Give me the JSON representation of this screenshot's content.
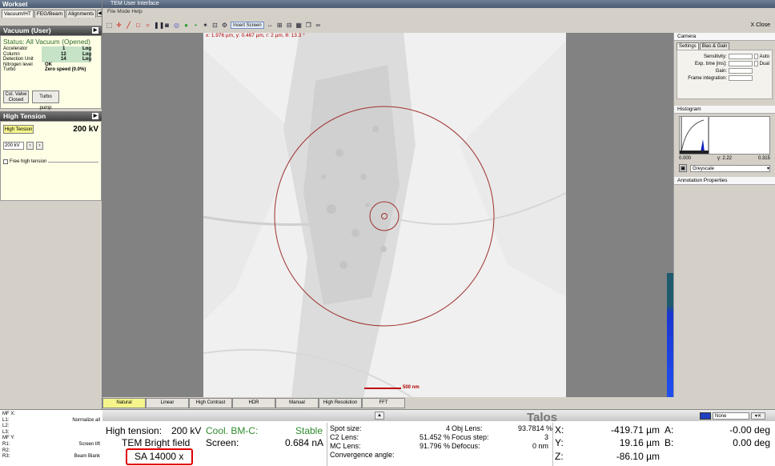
{
  "left": {
    "title": "Workset",
    "tabs": [
      "Vacuum/HT",
      "FEG/Beam",
      "Alignments"
    ],
    "vacuum": {
      "header": "Vacuum (User)",
      "status": "Status: All Vacuum (Opened)",
      "rows": [
        {
          "label": "Accelerator",
          "value": "1",
          "unit": "Log"
        },
        {
          "label": "Column",
          "value": "12",
          "unit": "Log"
        },
        {
          "label": "Detection Unit",
          "value": "14",
          "unit": "Log"
        },
        {
          "label": "Nitrogen level",
          "value": "OK",
          "unit": ""
        },
        {
          "label": "Turbo",
          "value": "Zero speed (0.0%)",
          "unit": ""
        }
      ],
      "col_valve": "Col. Valve Closed",
      "turbo_pump": "Turbo pump"
    },
    "ht": {
      "header": "High Tension",
      "button": "High Tension",
      "value": "200 kV",
      "select": "200 kV",
      "free_ht": "Free high tension"
    },
    "bottom": [
      {
        "label": "MF X:",
        "action": "Normalize all"
      },
      {
        "label": "L1:",
        "action": ""
      },
      {
        "label": "L2:",
        "action": ""
      },
      {
        "label": "L3:",
        "action": ""
      },
      {
        "label": "MF Y:",
        "action": ""
      },
      {
        "label": "R1:",
        "action": "Screen lift"
      },
      {
        "label": "R2:",
        "action": ""
      },
      {
        "label": "R3:",
        "action": "Beam Blank"
      }
    ]
  },
  "app": {
    "title": "TEM User Interface",
    "menu": "File  Mode  Help",
    "insert_screen": "Insert Screen",
    "close": "X Close"
  },
  "image": {
    "coord_readout": "x: 1.976 µm, y: 0.467 µm, r: 2 µm, θ: 13.3 °",
    "scale_label": "500 nm"
  },
  "modes": [
    "Natural",
    "Linear",
    "High Contrast",
    "HDR",
    "Manual",
    "High Resolution",
    "FFT"
  ],
  "right": {
    "camera": "Camera",
    "tabs": [
      "Settings",
      "Bias & Gain"
    ],
    "fields": [
      "Sensitivity:",
      "Exp. time [ms]:",
      "Gain:",
      "Frame integration:"
    ],
    "auto": "Auto",
    "dual": "Dual",
    "histogram": "Histogram",
    "hist_min": "0.000",
    "hist_gamma": "γ: 2.22",
    "hist_max": "0.315",
    "colormap": "Greyscale",
    "annotation": "Annotation Properties"
  },
  "status": {
    "brand": "Talos",
    "none_select": "None",
    "ht_label": "High tension:",
    "ht_value": "200 kV",
    "cool_label": "Cool. BM-C:",
    "cool_value": "Stable",
    "mode": "TEM Bright field",
    "screen_label": "Screen:",
    "screen_value": "0.684 nA",
    "mag": "SA 14000 x",
    "lens_labels": [
      "Spot size:",
      "C2 Lens:",
      "MC Lens:",
      "Convergence angle:"
    ],
    "lens_values": [
      "4",
      "51.452 %",
      "91.796 %",
      ""
    ],
    "obj_labels": [
      "Obj Lens:",
      "Focus step:",
      "Defocus:"
    ],
    "obj_values": [
      "93.7814 %",
      "3",
      "0 nm"
    ],
    "stage": [
      {
        "axis": "X:",
        "value": "-419.71 µm",
        "axis2": "A:",
        "value2": "-0.00 deg"
      },
      {
        "axis": "Y:",
        "value": "19.16 µm",
        "axis2": "B:",
        "value2": "0.00 deg"
      },
      {
        "axis": "Z:",
        "value": "-86.10 µm",
        "axis2": "",
        "value2": ""
      }
    ]
  }
}
